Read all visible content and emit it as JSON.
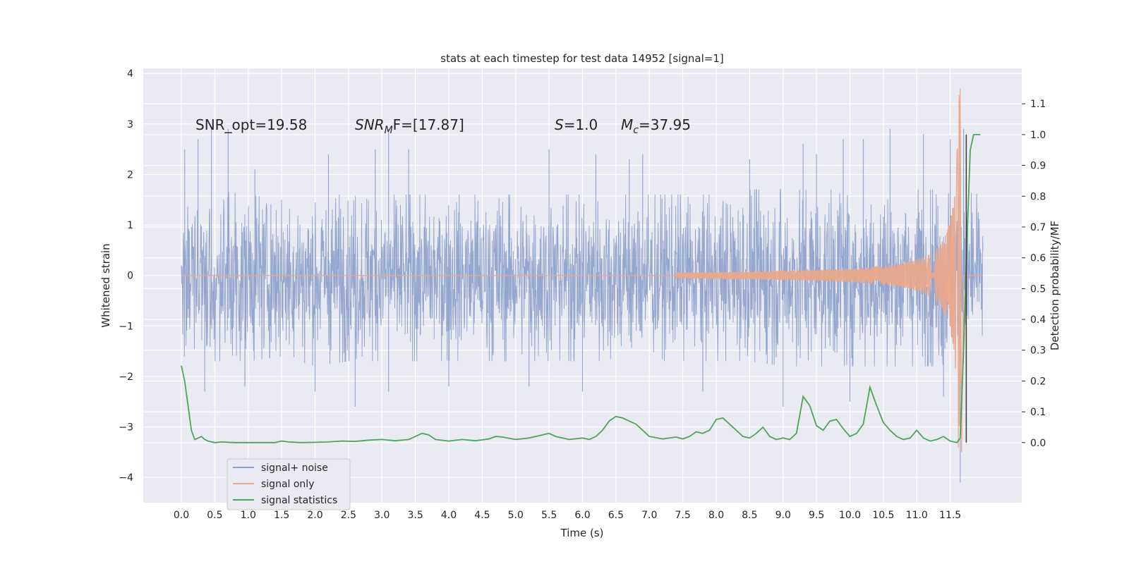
{
  "chart_data": {
    "type": "line",
    "title": "stats at each timestep for test data 14952 [signal=1]",
    "xlabel": "Time (s)",
    "ylabel": "Whitened strain",
    "y2label": "Detection probability/MF",
    "xlim": [
      -0.57,
      12.57
    ],
    "ylim": [
      -4.5,
      4.1
    ],
    "y2lim": [
      -0.195,
      1.215
    ],
    "x_ticks": [
      "0.0",
      "0.5",
      "1.0",
      "1.5",
      "2.0",
      "2.5",
      "3.0",
      "3.5",
      "4.0",
      "4.5",
      "5.0",
      "5.5",
      "6.0",
      "6.5",
      "7.0",
      "7.5",
      "8.0",
      "8.5",
      "9.0",
      "9.5",
      "10.0",
      "10.5",
      "11.0",
      "11.5"
    ],
    "y_ticks": [
      "4",
      "3",
      "2",
      "1",
      "0",
      "−1",
      "−2",
      "−3",
      "−4"
    ],
    "y2_ticks": [
      "1.1",
      "1.0",
      "0.9",
      "0.8",
      "0.7",
      "0.6",
      "0.5",
      "0.4",
      "0.3",
      "0.2",
      "0.1",
      "0.0"
    ],
    "grid": true,
    "legend_placement": "lower-left",
    "annotations": {
      "snr_opt": "SNR_opt=19.58",
      "snr_mf_var": "SNR",
      "snr_mf_sub": "M",
      "snr_mf_rest": "F=[17.87]",
      "s_var": "S",
      "s_rest": "=1.0",
      "mc_var": "M",
      "mc_sub": "c",
      "mc_rest": "=37.95"
    },
    "series": [
      {
        "name": "signal+ noise",
        "color": "#8da0cb",
        "axis": "left",
        "x_range": [
          0.0,
          11.99
        ],
        "envelope": [
          [
            0.0,
            1.6,
            -1.6
          ],
          [
            0.5,
            1.7,
            -1.7
          ],
          [
            1.0,
            1.6,
            -1.7
          ],
          [
            1.5,
            1.5,
            -1.6
          ],
          [
            2.0,
            1.6,
            -1.8
          ],
          [
            2.5,
            1.6,
            -1.7
          ],
          [
            3.0,
            1.6,
            -1.7
          ],
          [
            3.5,
            1.6,
            -1.7
          ],
          [
            4.0,
            1.6,
            -1.7
          ],
          [
            4.5,
            1.6,
            -1.7
          ],
          [
            5.0,
            1.6,
            -1.7
          ],
          [
            5.5,
            1.6,
            -1.7
          ],
          [
            6.0,
            1.6,
            -1.7
          ],
          [
            6.5,
            1.6,
            -1.7
          ],
          [
            7.0,
            1.6,
            -1.7
          ],
          [
            7.5,
            1.6,
            -1.7
          ],
          [
            8.0,
            1.6,
            -1.7
          ],
          [
            8.5,
            1.7,
            -1.7
          ],
          [
            9.0,
            1.7,
            -1.8
          ],
          [
            9.5,
            1.7,
            -1.8
          ],
          [
            10.0,
            1.7,
            -1.8
          ],
          [
            10.5,
            1.7,
            -1.8
          ],
          [
            11.0,
            1.7,
            -1.8
          ],
          [
            11.5,
            1.7,
            -1.8
          ],
          [
            11.99,
            1.6,
            -1.6
          ]
        ],
        "spikes": [
          [
            0.05,
            2.5
          ],
          [
            0.25,
            2.7
          ],
          [
            0.45,
            2.9
          ],
          [
            0.7,
            2.9
          ],
          [
            1.1,
            2.1
          ],
          [
            2.2,
            2.4
          ],
          [
            2.9,
            2.5
          ],
          [
            3.1,
            2.9
          ],
          [
            3.4,
            2.5
          ],
          [
            5.5,
            2.5
          ],
          [
            6.2,
            2.4
          ],
          [
            6.7,
            2.3
          ],
          [
            6.9,
            2.4
          ],
          [
            8.5,
            2.3
          ],
          [
            9.3,
            2.6
          ],
          [
            9.5,
            2.4
          ],
          [
            9.9,
            2.7
          ],
          [
            10.2,
            2.7
          ],
          [
            10.6,
            2.9
          ],
          [
            11.1,
            2.8
          ],
          [
            11.5,
            2.7
          ],
          [
            0.35,
            -2.3
          ],
          [
            0.95,
            -2.2
          ],
          [
            2.0,
            -2.3
          ],
          [
            2.6,
            -2.6
          ],
          [
            3.1,
            -2.3
          ],
          [
            4.0,
            -2.2
          ],
          [
            5.2,
            -2.2
          ],
          [
            6.0,
            -2.3
          ],
          [
            7.8,
            -2.3
          ],
          [
            9.0,
            -2.6
          ],
          [
            10.0,
            -2.5
          ],
          [
            11.4,
            -2.4
          ],
          [
            11.65,
            -4.1
          ],
          [
            11.7,
            2.9
          ]
        ]
      },
      {
        "name": "signal only",
        "color": "#e8a88d",
        "axis": "left",
        "chirp_start": 7.4,
        "chirp_peak": 11.65,
        "peak_amplitude": 3.7,
        "min_amplitude": -3.5
      },
      {
        "name": "signal statistics",
        "color": "#4ea45a",
        "axis": "right",
        "x": [
          0.0,
          0.05,
          0.1,
          0.15,
          0.2,
          0.25,
          0.3,
          0.35,
          0.4,
          0.5,
          0.6,
          0.8,
          1.0,
          1.2,
          1.4,
          1.5,
          1.6,
          1.8,
          2.0,
          2.2,
          2.4,
          2.6,
          2.8,
          3.0,
          3.2,
          3.4,
          3.5,
          3.6,
          3.7,
          3.8,
          4.0,
          4.2,
          4.4,
          4.6,
          4.7,
          4.8,
          5.0,
          5.2,
          5.4,
          5.5,
          5.6,
          5.8,
          6.0,
          6.1,
          6.2,
          6.3,
          6.4,
          6.5,
          6.6,
          6.8,
          6.9,
          7.0,
          7.2,
          7.4,
          7.5,
          7.6,
          7.7,
          7.8,
          7.9,
          8.0,
          8.1,
          8.2,
          8.3,
          8.4,
          8.5,
          8.6,
          8.7,
          8.8,
          8.9,
          9.0,
          9.1,
          9.2,
          9.3,
          9.4,
          9.5,
          9.6,
          9.7,
          9.8,
          9.9,
          10.0,
          10.1,
          10.2,
          10.3,
          10.4,
          10.5,
          10.6,
          10.7,
          10.8,
          10.9,
          11.0,
          11.1,
          11.2,
          11.3,
          11.4,
          11.5,
          11.6,
          11.65,
          11.7,
          11.75,
          11.8,
          11.85,
          11.9,
          11.95
        ],
        "y": [
          0.25,
          0.2,
          0.12,
          0.04,
          0.01,
          0.015,
          0.02,
          0.01,
          0.005,
          0.0,
          0.002,
          0.0,
          0.0,
          0.0,
          0.0,
          0.005,
          0.002,
          0.0,
          0.001,
          0.002,
          0.005,
          0.004,
          0.008,
          0.01,
          0.006,
          0.01,
          0.02,
          0.03,
          0.025,
          0.01,
          0.005,
          0.01,
          0.006,
          0.012,
          0.02,
          0.018,
          0.01,
          0.015,
          0.025,
          0.03,
          0.02,
          0.01,
          0.015,
          0.01,
          0.02,
          0.04,
          0.07,
          0.085,
          0.08,
          0.06,
          0.04,
          0.02,
          0.012,
          0.018,
          0.012,
          0.02,
          0.035,
          0.03,
          0.04,
          0.075,
          0.08,
          0.06,
          0.04,
          0.02,
          0.015,
          0.03,
          0.05,
          0.02,
          0.01,
          0.015,
          0.01,
          0.03,
          0.15,
          0.12,
          0.055,
          0.04,
          0.07,
          0.075,
          0.045,
          0.02,
          0.03,
          0.06,
          0.18,
          0.12,
          0.065,
          0.04,
          0.02,
          0.01,
          0.015,
          0.04,
          0.015,
          0.005,
          0.01,
          0.02,
          0.005,
          0.0,
          0.015,
          0.3,
          0.65,
          0.95,
          1.0,
          1.0,
          1.0
        ]
      }
    ]
  }
}
